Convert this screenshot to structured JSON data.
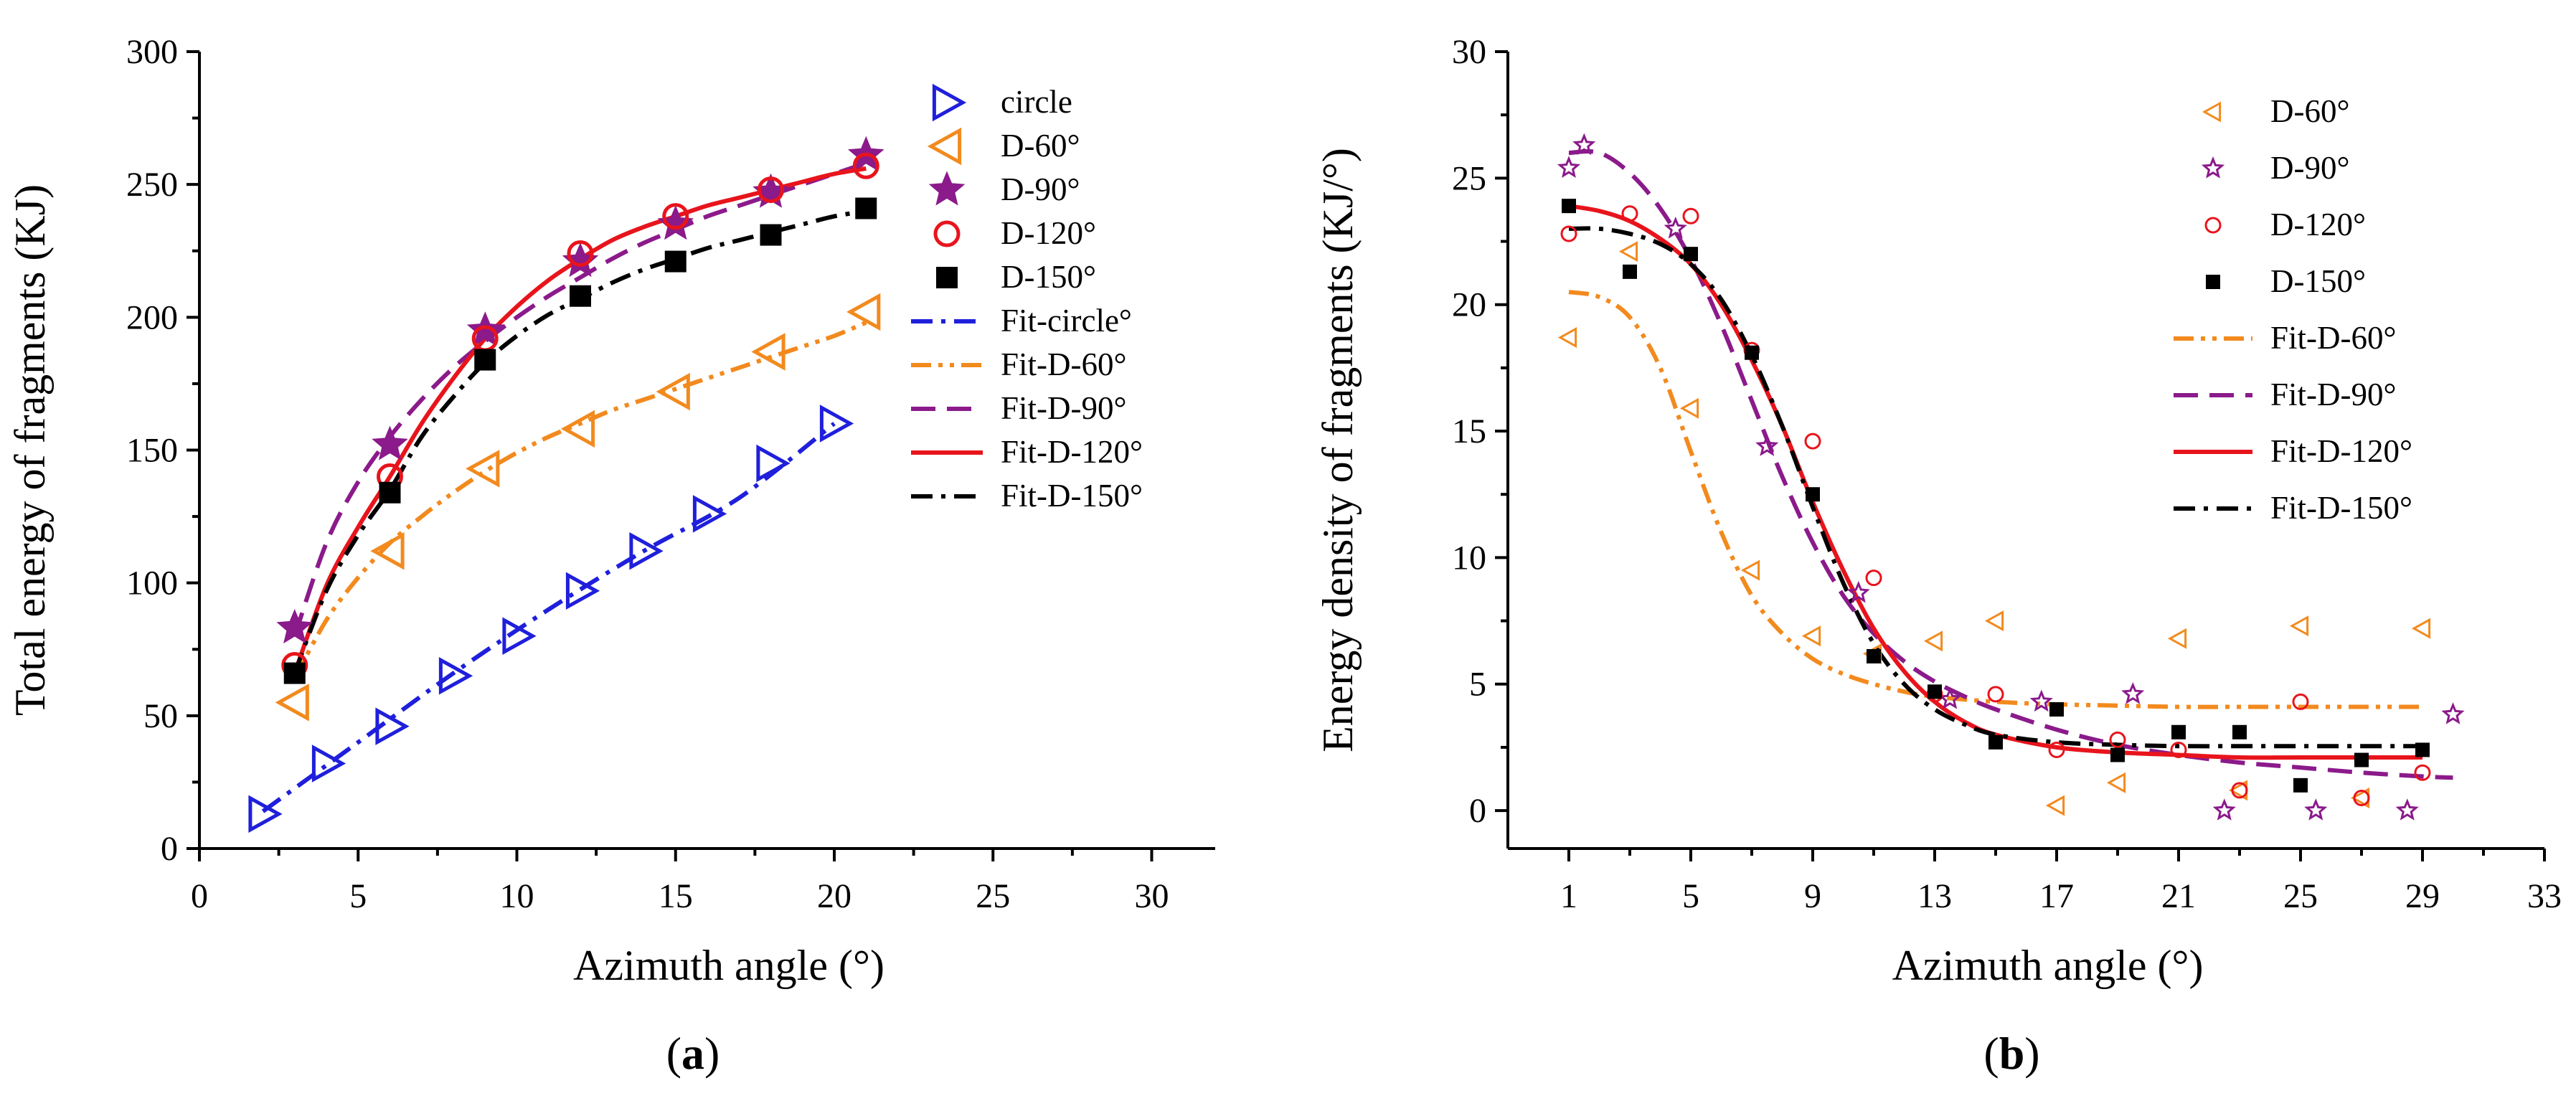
{
  "chart_data": [
    {
      "type": "line",
      "panel_label": "a",
      "xlabel": "Azimuth angle (°)",
      "ylabel": "Total energy of fragments (KJ)",
      "xlim": [
        0,
        32
      ],
      "ylim": [
        0,
        300
      ],
      "xticks": [
        0,
        5,
        10,
        15,
        20,
        25,
        30
      ],
      "yticks": [
        0,
        50,
        100,
        150,
        200,
        250,
        300
      ],
      "legend_position": "top-right",
      "series": [
        {
          "name": "circle",
          "kind": "marker",
          "marker": "triangle-right",
          "color": "#1f1fdc",
          "x": [
            2,
            4,
            6,
            8,
            10,
            12,
            14,
            16,
            18,
            20
          ],
          "y": [
            13,
            32,
            46,
            65,
            80,
            97,
            112,
            126,
            145,
            160
          ]
        },
        {
          "name": "D-60°",
          "kind": "marker",
          "marker": "triangle-left",
          "color": "#f28a1e",
          "x": [
            3,
            6,
            9,
            12,
            15,
            18,
            21
          ],
          "y": [
            55,
            112,
            143,
            158,
            172,
            187,
            202
          ]
        },
        {
          "name": "D-90°",
          "kind": "marker",
          "marker": "star",
          "color": "#8b1a8b",
          "x": [
            3,
            6,
            9,
            12,
            15,
            18,
            21
          ],
          "y": [
            83,
            152,
            195,
            221,
            235,
            247,
            261
          ]
        },
        {
          "name": "D-120°",
          "kind": "marker",
          "marker": "circle",
          "color": "#e8141c",
          "x": [
            3,
            6,
            9,
            12,
            15,
            18,
            21
          ],
          "y": [
            69,
            140,
            192,
            224,
            238,
            248,
            257
          ]
        },
        {
          "name": "D-150°",
          "kind": "marker",
          "marker": "square",
          "color": "#000000",
          "x": [
            3,
            6,
            9,
            12,
            15,
            18,
            21
          ],
          "y": [
            66,
            134,
            184,
            208,
            221,
            231,
            241
          ]
        },
        {
          "name": "Fit-circle°",
          "kind": "line",
          "dash": "dashdot",
          "color": "#1f1fdc",
          "x": [
            2,
            5,
            8,
            11,
            14,
            17,
            20
          ],
          "y": [
            14,
            40,
            66,
            90,
            112,
            132,
            160
          ]
        },
        {
          "name": "Fit-D-60°",
          "kind": "line",
          "dash": "dashdotdot",
          "color": "#f28a1e",
          "x": [
            3,
            4,
            5,
            6,
            7,
            8,
            9,
            10,
            11,
            12,
            13,
            14,
            15,
            16,
            17,
            18,
            19,
            20,
            21
          ],
          "y": [
            64,
            86,
            102,
            115,
            125,
            134,
            142,
            149,
            155,
            160,
            165,
            169,
            173,
            177,
            181,
            185,
            189,
            193,
            198
          ]
        },
        {
          "name": "Fit-D-90°",
          "kind": "line",
          "dash": "dash",
          "color": "#8b1a8b",
          "x": [
            3,
            4,
            5,
            6,
            7,
            8,
            9,
            10,
            11,
            12,
            13,
            14,
            15,
            16,
            17,
            18,
            19,
            20,
            21
          ],
          "y": [
            80,
            115,
            138,
            155,
            169,
            181,
            191,
            200,
            208,
            215,
            222,
            228,
            233,
            238,
            242,
            246,
            250,
            254,
            258
          ]
        },
        {
          "name": "Fit-D-120°",
          "kind": "line",
          "dash": "solid",
          "color": "#e8141c",
          "x": [
            3,
            4,
            5,
            6,
            7,
            8,
            9,
            10,
            11,
            12,
            13,
            14,
            15,
            16,
            17,
            18,
            19,
            20,
            21
          ],
          "y": [
            66,
            99,
            121,
            140,
            160,
            177,
            192,
            204,
            214,
            222,
            229,
            234,
            238,
            242,
            245,
            248,
            251,
            254,
            256
          ]
        },
        {
          "name": "Fit-D-150°",
          "kind": "line",
          "dash": "dashdot",
          "color": "#000000",
          "x": [
            3,
            4,
            5,
            6,
            7,
            8,
            9,
            10,
            11,
            12,
            13,
            14,
            15,
            16,
            17,
            18,
            19,
            20,
            21
          ],
          "y": [
            66,
            97,
            118,
            135,
            155,
            170,
            183,
            193,
            201,
            207,
            213,
            218,
            222,
            226,
            229,
            232,
            235,
            238,
            240
          ]
        }
      ]
    },
    {
      "type": "line",
      "panel_label": "b",
      "xlabel": "Azimuth angle (°)",
      "ylabel": "Energy density of fragments (KJ/°)",
      "xlim": [
        -1,
        33
      ],
      "ylim": [
        -1.5,
        30
      ],
      "xticks": [
        1,
        5,
        9,
        13,
        17,
        21,
        25,
        29,
        33
      ],
      "yticks": [
        0,
        5,
        10,
        15,
        20,
        25,
        30
      ],
      "legend_position": "top-right",
      "series": [
        {
          "name": "D-60°",
          "kind": "marker",
          "marker": "triangle-left-small",
          "color": "#f28a1e",
          "x": [
            1,
            3,
            5,
            7,
            9,
            11,
            13,
            15,
            17,
            19,
            21,
            23,
            25,
            27,
            29
          ],
          "y": [
            18.7,
            22.1,
            15.9,
            9.5,
            6.9,
            6.2,
            6.7,
            7.5,
            0.2,
            1.1,
            6.8,
            0.8,
            7.3,
            0.5,
            7.2
          ]
        },
        {
          "name": "D-90°",
          "kind": "marker",
          "marker": "star",
          "color": "#8b1a8b",
          "x": [
            1,
            1.5,
            4.5,
            7.5,
            10.5,
            13.5,
            16.5,
            19.5,
            22.5,
            25.5,
            28.5,
            30
          ],
          "y": [
            25.4,
            26.3,
            23.0,
            14.4,
            8.6,
            4.4,
            4.3,
            4.6,
            0.0,
            0.0,
            0.0,
            3.8
          ]
        },
        {
          "name": "D-120°",
          "kind": "marker",
          "marker": "circle",
          "color": "#e8141c",
          "x": [
            1,
            3,
            5,
            7,
            9,
            11,
            13,
            15,
            17,
            19,
            21,
            23,
            25,
            27,
            29
          ],
          "y": [
            22.8,
            23.6,
            23.5,
            18.2,
            14.6,
            9.2,
            4.6,
            4.6,
            2.4,
            2.8,
            2.4,
            0.8,
            4.3,
            0.5,
            1.5
          ]
        },
        {
          "name": "D-150°",
          "kind": "marker",
          "marker": "square",
          "color": "#000000",
          "x": [
            1,
            3,
            5,
            7,
            9,
            11,
            13,
            15,
            17,
            19,
            21,
            23,
            25,
            27,
            29
          ],
          "y": [
            23.9,
            21.3,
            22.0,
            18.1,
            12.5,
            6.1,
            4.7,
            2.7,
            4.0,
            2.2,
            3.1,
            3.1,
            1.0,
            2.0,
            2.4
          ]
        },
        {
          "name": "Fit-D-60°",
          "kind": "line",
          "dash": "dashdotdot",
          "color": "#f28a1e",
          "x": [
            1,
            2,
            3,
            4,
            5,
            6,
            7,
            8,
            9,
            10,
            11,
            12,
            13,
            15,
            17,
            19,
            21,
            23,
            25,
            27,
            29
          ],
          "y": [
            20.5,
            20.3,
            19.5,
            17.5,
            14.2,
            11.0,
            8.5,
            7.0,
            6.0,
            5.4,
            5.0,
            4.7,
            4.5,
            4.3,
            4.2,
            4.15,
            4.1,
            4.1,
            4.1,
            4.1,
            4.1
          ]
        },
        {
          "name": "Fit-D-90°",
          "kind": "line",
          "dash": "dash",
          "color": "#8b1a8b",
          "x": [
            1,
            2,
            3,
            4,
            5,
            6,
            7,
            8,
            9,
            10,
            11,
            12,
            13,
            14,
            15,
            17,
            19,
            21,
            23,
            25,
            27,
            29,
            30
          ],
          "y": [
            26.0,
            26.0,
            25.2,
            23.8,
            21.8,
            19.2,
            16.2,
            13.2,
            10.6,
            8.5,
            7.0,
            5.9,
            5.1,
            4.5,
            4.0,
            3.2,
            2.6,
            2.2,
            1.9,
            1.7,
            1.5,
            1.35,
            1.3
          ]
        },
        {
          "name": "Fit-D-120°",
          "kind": "line",
          "dash": "solid",
          "color": "#e8141c",
          "x": [
            1,
            2,
            3,
            4,
            5,
            6,
            7,
            8,
            9,
            10,
            11,
            12,
            13,
            14,
            15,
            17,
            19,
            21,
            23,
            25,
            27,
            29
          ],
          "y": [
            23.9,
            23.7,
            23.3,
            22.6,
            21.6,
            20.0,
            17.8,
            15.2,
            12.2,
            9.5,
            7.2,
            5.5,
            4.3,
            3.5,
            3.0,
            2.5,
            2.3,
            2.2,
            2.1,
            2.1,
            2.1,
            2.1
          ]
        },
        {
          "name": "Fit-D-150°",
          "kind": "line",
          "dash": "dashdot",
          "color": "#000000",
          "x": [
            1,
            2,
            3,
            4,
            5,
            6,
            7,
            8,
            9,
            10,
            11,
            12,
            13,
            14,
            15,
            17,
            19,
            21,
            23,
            25,
            27,
            29
          ],
          "y": [
            23.0,
            23.0,
            22.8,
            22.4,
            21.6,
            20.2,
            18.0,
            15.2,
            12.0,
            9.0,
            6.6,
            5.0,
            4.0,
            3.4,
            3.0,
            2.7,
            2.6,
            2.55,
            2.55,
            2.55,
            2.55,
            2.55
          ]
        }
      ]
    }
  ]
}
